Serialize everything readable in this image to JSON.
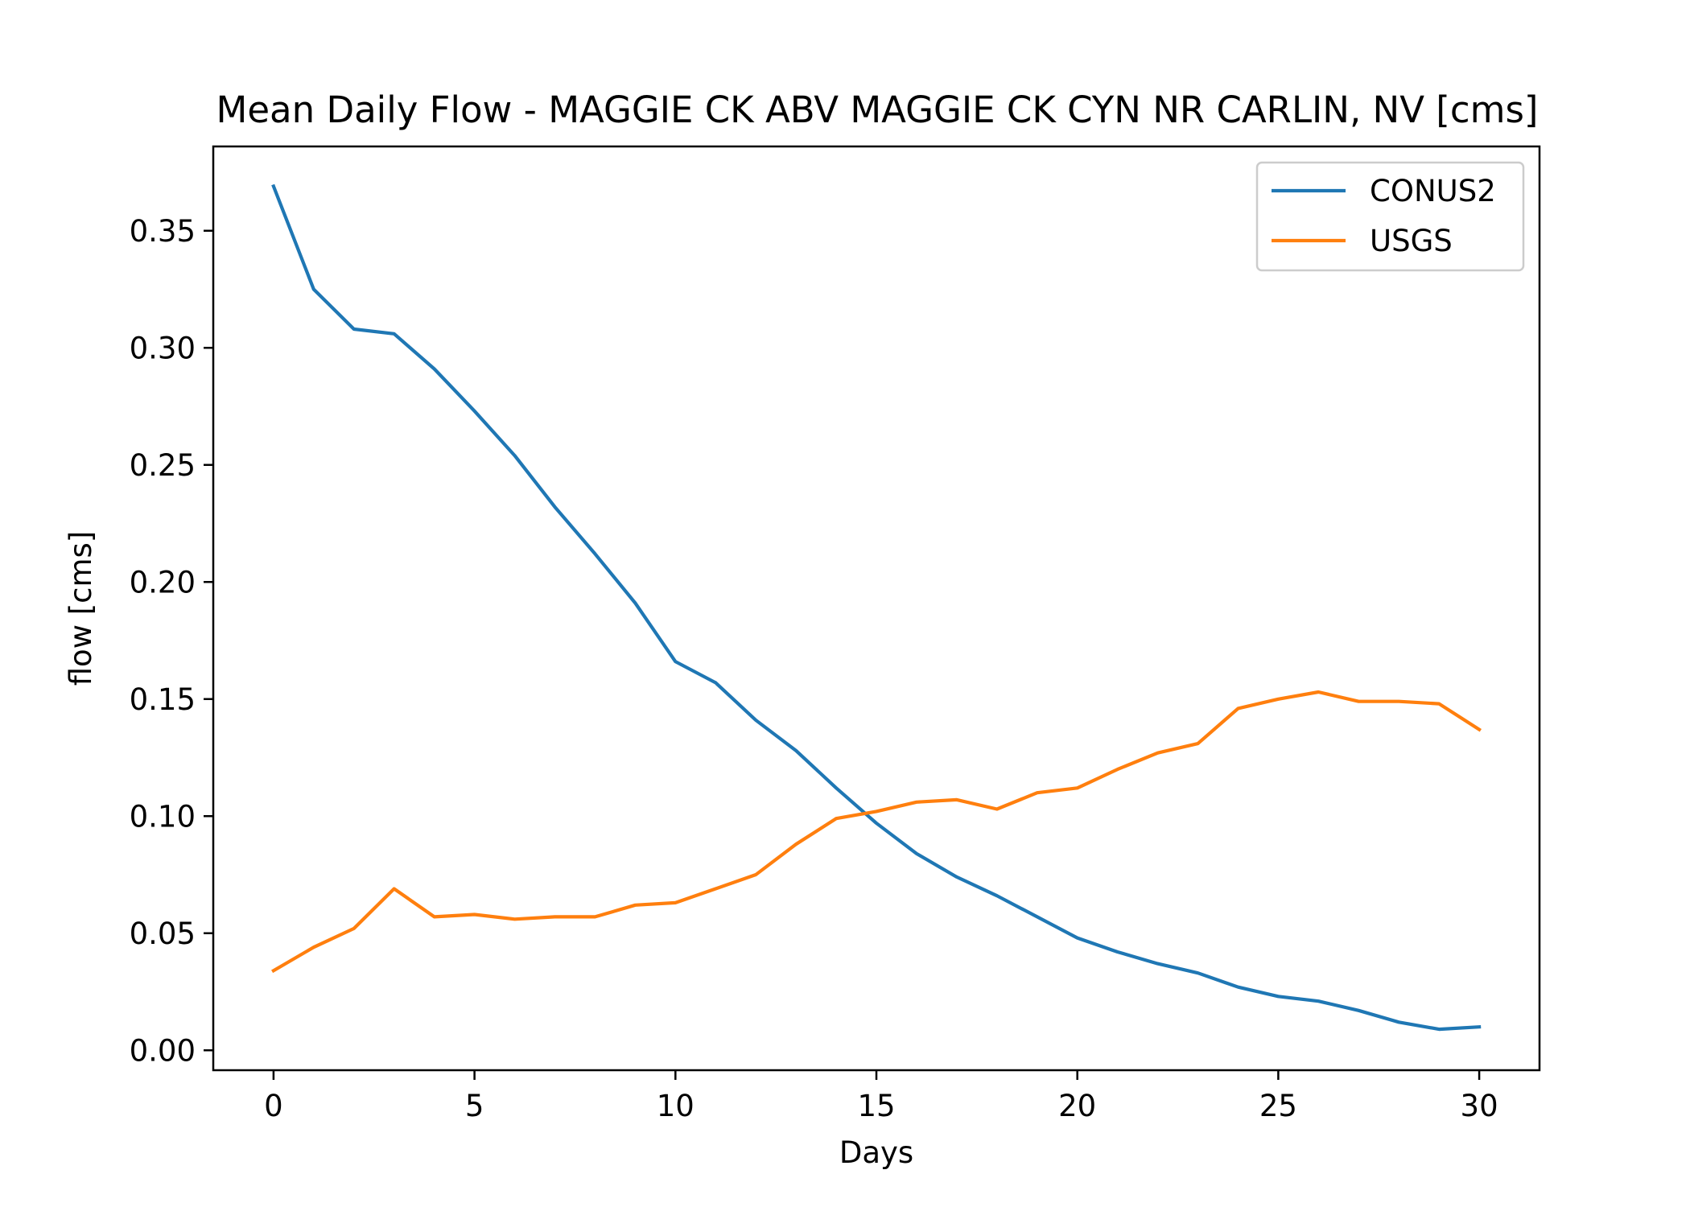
{
  "chart_data": {
    "type": "line",
    "title": "Mean Daily Flow - MAGGIE CK ABV MAGGIE CK CYN NR CARLIN, NV [cms]",
    "xlabel": "Days",
    "ylabel": "flow [cms]",
    "xlim": [
      -1.5,
      31.5
    ],
    "ylim": [
      -0.0085,
      0.386
    ],
    "x_ticks": [
      0,
      5,
      10,
      15,
      20,
      25,
      30
    ],
    "x_tick_labels": [
      "0",
      "5",
      "10",
      "15",
      "20",
      "25",
      "30"
    ],
    "y_ticks": [
      0.0,
      0.05,
      0.1,
      0.15,
      0.2,
      0.25,
      0.3,
      0.35
    ],
    "y_tick_labels": [
      "0.00",
      "0.05",
      "0.10",
      "0.15",
      "0.20",
      "0.25",
      "0.30",
      "0.35"
    ],
    "grid": false,
    "legend_position": "upper right",
    "x": [
      0,
      1,
      2,
      3,
      4,
      5,
      6,
      7,
      8,
      9,
      10,
      11,
      12,
      13,
      14,
      15,
      16,
      17,
      18,
      19,
      20,
      21,
      22,
      23,
      24,
      25,
      26,
      27,
      28,
      29,
      30
    ],
    "series": [
      {
        "name": "CONUS2",
        "color": "#1f77b4",
        "values": [
          0.369,
          0.325,
          0.308,
          0.306,
          0.291,
          0.273,
          0.254,
          0.232,
          0.212,
          0.191,
          0.166,
          0.157,
          0.141,
          0.128,
          0.112,
          0.097,
          0.084,
          0.074,
          0.066,
          0.057,
          0.048,
          0.042,
          0.037,
          0.033,
          0.027,
          0.023,
          0.021,
          0.017,
          0.012,
          0.009,
          0.01
        ]
      },
      {
        "name": "USGS",
        "color": "#ff7f0e",
        "values": [
          0.034,
          0.044,
          0.052,
          0.069,
          0.057,
          0.058,
          0.056,
          0.057,
          0.057,
          0.062,
          0.063,
          0.069,
          0.075,
          0.088,
          0.099,
          0.102,
          0.106,
          0.107,
          0.103,
          0.11,
          0.112,
          0.12,
          0.127,
          0.131,
          0.146,
          0.15,
          0.153,
          0.149,
          0.149,
          0.148,
          0.137
        ]
      }
    ]
  }
}
